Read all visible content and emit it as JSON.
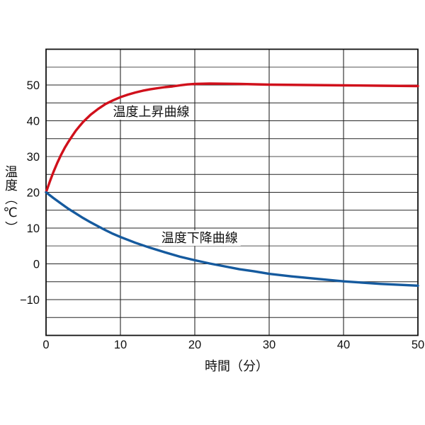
{
  "chart_data": {
    "type": "line",
    "title": "",
    "xlabel": "時間（分）",
    "ylabel": "温度（℃）",
    "xlim": [
      0,
      50
    ],
    "ylim": [
      -20,
      60
    ],
    "x_ticks": [
      0,
      10,
      20,
      30,
      40,
      50
    ],
    "y_ticks": [
      -10,
      0,
      10,
      20,
      30,
      40,
      50
    ],
    "grid": {
      "y_step": 5,
      "x_step": 10,
      "gray_y_lines": [
        55,
        30,
        5
      ],
      "major_color": "#262626",
      "gray_color": "#8c8c8c",
      "frame_color": "#111111"
    },
    "legend_position": "none",
    "series": [
      {
        "name": "温度上昇曲線",
        "color": "#d0101b",
        "points": [
          [
            0,
            20
          ],
          [
            0.5,
            23
          ],
          [
            1,
            25.7
          ],
          [
            1.5,
            28.2
          ],
          [
            2,
            30.4
          ],
          [
            2.5,
            32.4
          ],
          [
            3,
            34.1
          ],
          [
            3.5,
            35.7
          ],
          [
            4,
            37.2
          ],
          [
            4.5,
            38.5
          ],
          [
            5,
            39.7
          ],
          [
            6,
            41.7
          ],
          [
            7,
            43.3
          ],
          [
            8,
            44.7
          ],
          [
            9,
            45.7
          ],
          [
            10,
            46.6
          ],
          [
            11,
            47.3
          ],
          [
            12,
            47.9
          ],
          [
            13,
            48.4
          ],
          [
            14,
            48.8
          ],
          [
            15,
            49.1
          ],
          [
            16,
            49.4
          ],
          [
            17,
            49.6
          ],
          [
            18,
            49.9
          ],
          [
            19,
            50.15
          ],
          [
            20,
            50.3
          ],
          [
            22,
            50.4
          ],
          [
            24,
            50.35
          ],
          [
            26,
            50.3
          ],
          [
            28,
            50.2
          ],
          [
            30,
            50.1
          ],
          [
            35,
            50.0
          ],
          [
            40,
            49.9
          ],
          [
            45,
            49.8
          ],
          [
            50,
            49.7
          ]
        ]
      },
      {
        "name": "温度下降曲線",
        "color": "#155a9e",
        "points": [
          [
            0,
            20
          ],
          [
            1,
            18.4
          ],
          [
            2,
            16.9
          ],
          [
            3,
            15.4
          ],
          [
            4,
            14.1
          ],
          [
            5,
            12.8
          ],
          [
            6,
            11.6
          ],
          [
            7,
            10.5
          ],
          [
            8,
            9.4
          ],
          [
            9,
            8.4
          ],
          [
            10,
            7.5
          ],
          [
            12,
            5.9
          ],
          [
            14,
            4.5
          ],
          [
            16,
            3.2
          ],
          [
            18,
            2.0
          ],
          [
            20,
            1.0
          ],
          [
            22,
            0.1
          ],
          [
            24,
            -0.7
          ],
          [
            26,
            -1.5
          ],
          [
            28,
            -2.1
          ],
          [
            30,
            -2.8
          ],
          [
            33,
            -3.5
          ],
          [
            36,
            -4.1
          ],
          [
            40,
            -4.9
          ],
          [
            45,
            -5.6
          ],
          [
            50,
            -6.1
          ]
        ]
      }
    ],
    "annotations": [
      {
        "text": "温度上昇曲線",
        "x": 9.0,
        "y": 42.5
      },
      {
        "text": "温度下降曲線",
        "x": 15.5,
        "y": 7.2
      }
    ]
  }
}
